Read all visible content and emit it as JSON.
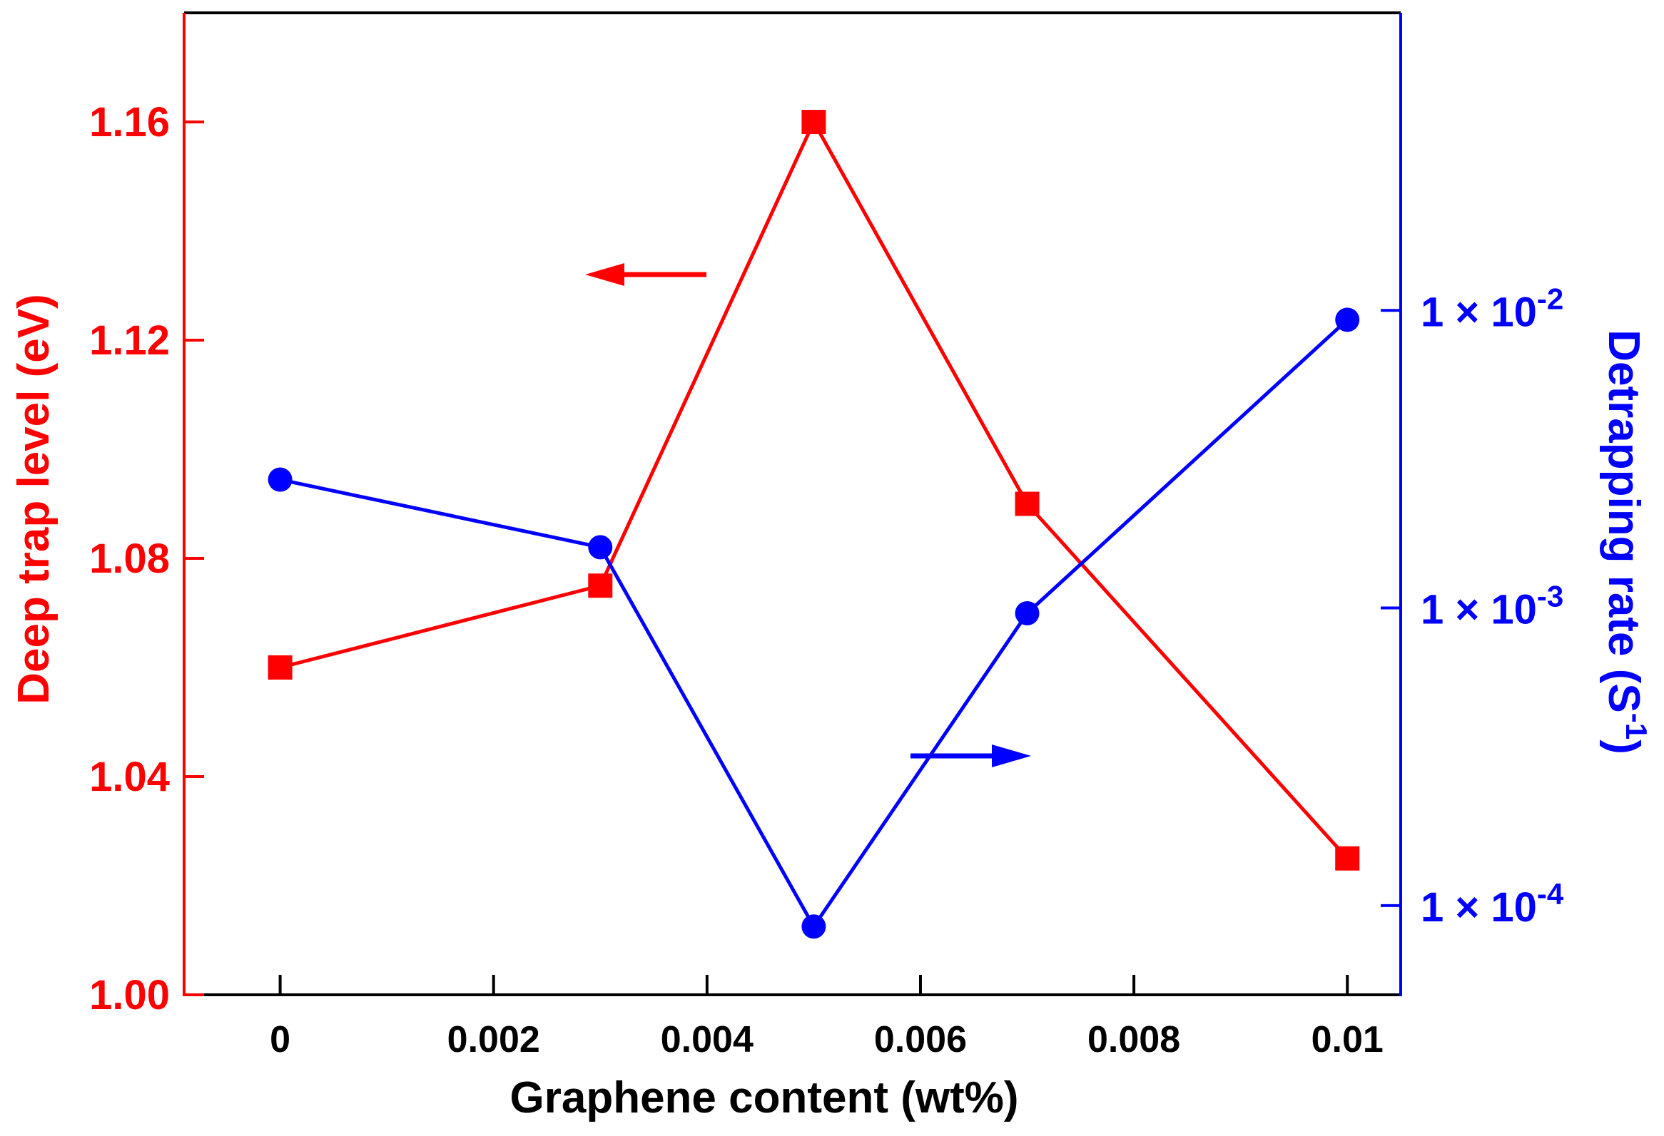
{
  "chart_data": {
    "type": "line",
    "xlabel": "Graphene content (wt%)",
    "x_ticks": [
      "0",
      "0.002",
      "0.004",
      "0.006",
      "0.008",
      "0.01"
    ],
    "x_tick_values": [
      0,
      0.002,
      0.004,
      0.006,
      0.008,
      0.01
    ],
    "xlim": [
      -0.0009,
      0.0105
    ],
    "left_axis": {
      "label": "Deep trap level (eV)",
      "color": "#ff0000",
      "ylim": [
        1.0,
        1.18
      ],
      "ticks": [
        "1.00",
        "1.04",
        "1.08",
        "1.12",
        "1.16"
      ],
      "tick_values": [
        1.0,
        1.04,
        1.08,
        1.12,
        1.16
      ]
    },
    "right_axis": {
      "label_main": "Detrapping rate (S",
      "label_sup": "-1",
      "label_close": ")",
      "color": "#0000ff",
      "scale": "log",
      "ylim_log10": [
        -4.3,
        -1.0
      ],
      "ticks": [
        {
          "mantissa": "1 × 10",
          "exp": "-4",
          "log10": -4
        },
        {
          "mantissa": "1 × 10",
          "exp": "-3",
          "log10": -3
        },
        {
          "mantissa": "1 × 10",
          "exp": "-2",
          "log10": -2
        }
      ]
    },
    "series": [
      {
        "name": "Deep trap level",
        "axis": "left",
        "marker": "square",
        "color": "#ff0000",
        "x": [
          0,
          0.003,
          0.005,
          0.007,
          0.01
        ],
        "values": [
          1.06,
          1.075,
          1.16,
          1.09,
          1.025
        ]
      },
      {
        "name": "Detrapping rate",
        "axis": "right",
        "marker": "circle",
        "color": "#0000ff",
        "x": [
          0,
          0.003,
          0.005,
          0.007,
          0.01
        ],
        "values": [
          0.0027,
          0.0016,
          8.5e-05,
          0.00096,
          0.0093
        ]
      }
    ],
    "annotations": [
      {
        "type": "arrow",
        "direction": "left",
        "color": "#ff0000",
        "points_to": "left axis"
      },
      {
        "type": "arrow",
        "direction": "right",
        "color": "#0000ff",
        "points_to": "right axis"
      }
    ]
  }
}
